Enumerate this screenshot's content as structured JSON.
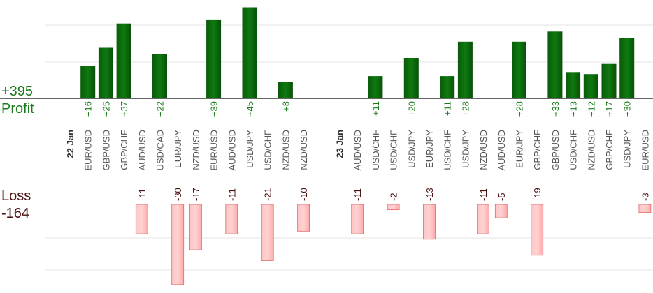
{
  "summary": {
    "profit_total": "+395",
    "profit_label": "Profit",
    "loss_label": "Loss",
    "loss_total": "-164"
  },
  "colors": {
    "profit_bar": "#0b6b0b",
    "profit_text": "#1a7a1a",
    "loss_bar": "#ffb6b6",
    "loss_border": "#e06a6a",
    "loss_text": "#4a1010"
  },
  "chart_data": {
    "type": "bar",
    "profit_ylim": [
      0,
      54
    ],
    "loss_ylim": [
      0,
      31
    ],
    "categories": [
      {
        "label": "22 Jan",
        "date": true
      },
      {
        "label": "EUR/USD",
        "value": 16
      },
      {
        "label": "GBP/USD",
        "value": 25
      },
      {
        "label": "GBP/CHF",
        "value": 37
      },
      {
        "label": "AUD/USD",
        "value": -11
      },
      {
        "label": "USD/CAD",
        "value": 22
      },
      {
        "label": "EUR/JPY",
        "value": -30
      },
      {
        "label": "NZD/USD",
        "value": -17
      },
      {
        "label": "EUR/USD",
        "value": 39
      },
      {
        "label": "AUD/USD",
        "value": -11
      },
      {
        "label": "USD/JPY",
        "value": 45
      },
      {
        "label": "USD/CHF",
        "value": -21
      },
      {
        "label": "NZD/USD",
        "value": 8
      },
      {
        "label": "NZD/USD",
        "value": -10
      },
      {
        "label": "",
        "value": null
      },
      {
        "label": "23 Jan",
        "date": true
      },
      {
        "label": "AUD/USD",
        "value": -11
      },
      {
        "label": "USD/CHF",
        "value": 11
      },
      {
        "label": "USD/CHF",
        "value": -2
      },
      {
        "label": "USD/JPY",
        "value": 20
      },
      {
        "label": "EUR/JPY",
        "value": -13
      },
      {
        "label": "USD/CHF",
        "value": 11
      },
      {
        "label": "USD/JPY",
        "value": 28
      },
      {
        "label": "NZD/USD",
        "value": -11
      },
      {
        "label": "AUD/USD",
        "value": -5
      },
      {
        "label": "EUR/JPY",
        "value": 28
      },
      {
        "label": "GBP/CHF",
        "value": -19
      },
      {
        "label": "GBP/USD",
        "value": 33
      },
      {
        "label": "USD/CHF",
        "value": 13
      },
      {
        "label": "NZD/USD",
        "value": 12
      },
      {
        "label": "GBP/CHF",
        "value": 17
      },
      {
        "label": "USD/JPY",
        "value": 30
      },
      {
        "label": "EUR/USD",
        "value": -3
      }
    ],
    "value_labels": {
      "EUR/USD#1": "+16",
      "GBP/USD#2": "+25",
      "GBP/CHF#3": "+37",
      "AUD/USD#4": "-11",
      "USD/CAD#5": "+22",
      "EUR/JPY#6": "-30",
      "NZD/USD#7": "-17",
      "EUR/USD#8": "+39",
      "AUD/USD#9": "-11",
      "USD/JPY#10": "+45",
      "USD/CHF#11": "-21",
      "NZD/USD#12": "+8",
      "NZD/USD#13": "-10",
      "AUD/USD#16": "-11",
      "USD/CHF#17": "+11",
      "USD/CHF#18": "-2",
      "USD/JPY#19": "+20",
      "EUR/JPY#20": "-13",
      "USD/CHF#21": "+11",
      "USD/JPY#22": "+28",
      "NZD/USD#23": "-11",
      "AUD/USD#24": "-5",
      "EUR/JPY#25": "+28",
      "GBP/CHF#26": "-19",
      "GBP/USD#27": "+33",
      "USD/CHF#28": "+13",
      "NZD/USD#29": "+12",
      "GBP/CHF#30": "+17",
      "USD/JPY#31": "+30",
      "EUR/USD#32": "-3"
    },
    "grid": true
  }
}
